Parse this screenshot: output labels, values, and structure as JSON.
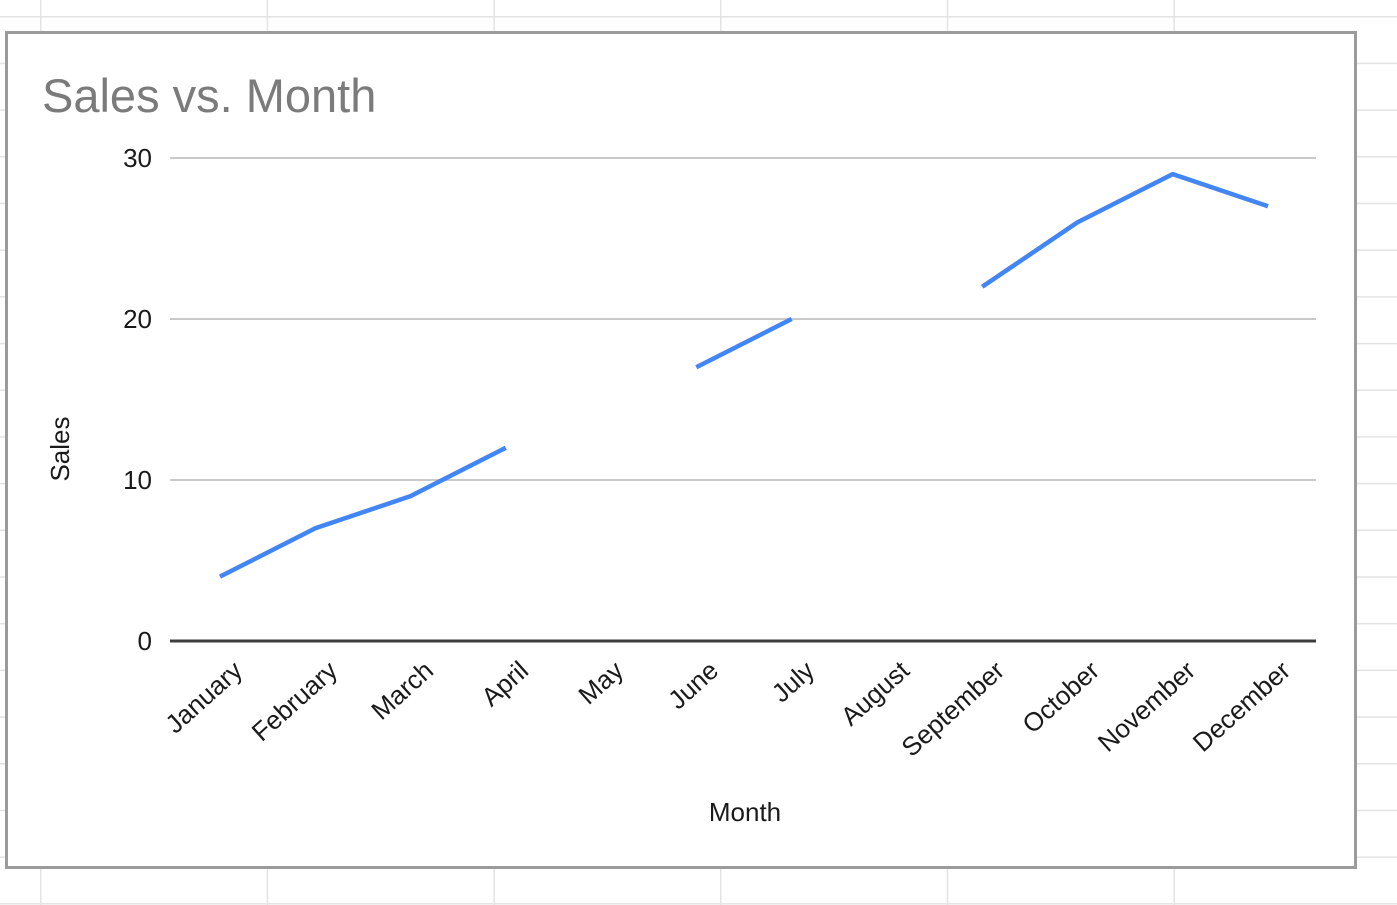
{
  "chart_data": {
    "type": "line",
    "title": "Sales vs. Month",
    "xlabel": "Month",
    "ylabel": "Sales",
    "categories": [
      "January",
      "February",
      "March",
      "April",
      "May",
      "June",
      "July",
      "August",
      "September",
      "October",
      "November",
      "December"
    ],
    "series": [
      {
        "name": "Sales",
        "values": [
          4,
          7,
          9,
          12,
          null,
          17,
          20,
          null,
          22,
          26,
          29,
          27
        ]
      }
    ],
    "ylim": [
      0,
      30
    ],
    "y_ticks": [
      0,
      10,
      20,
      30
    ],
    "missing_categories": [
      "May",
      "August"
    ],
    "grid": "horizontal",
    "legend": "none"
  },
  "colors": {
    "line": "#4285f4",
    "gridline": "#c9c9c9",
    "zero_axis": "#3d3d3d",
    "title_text": "#7b7b7b",
    "tick_text": "#1a1a1a",
    "card_border": "#9b9b9b",
    "sheet_gridline": "#e3e3e3"
  }
}
